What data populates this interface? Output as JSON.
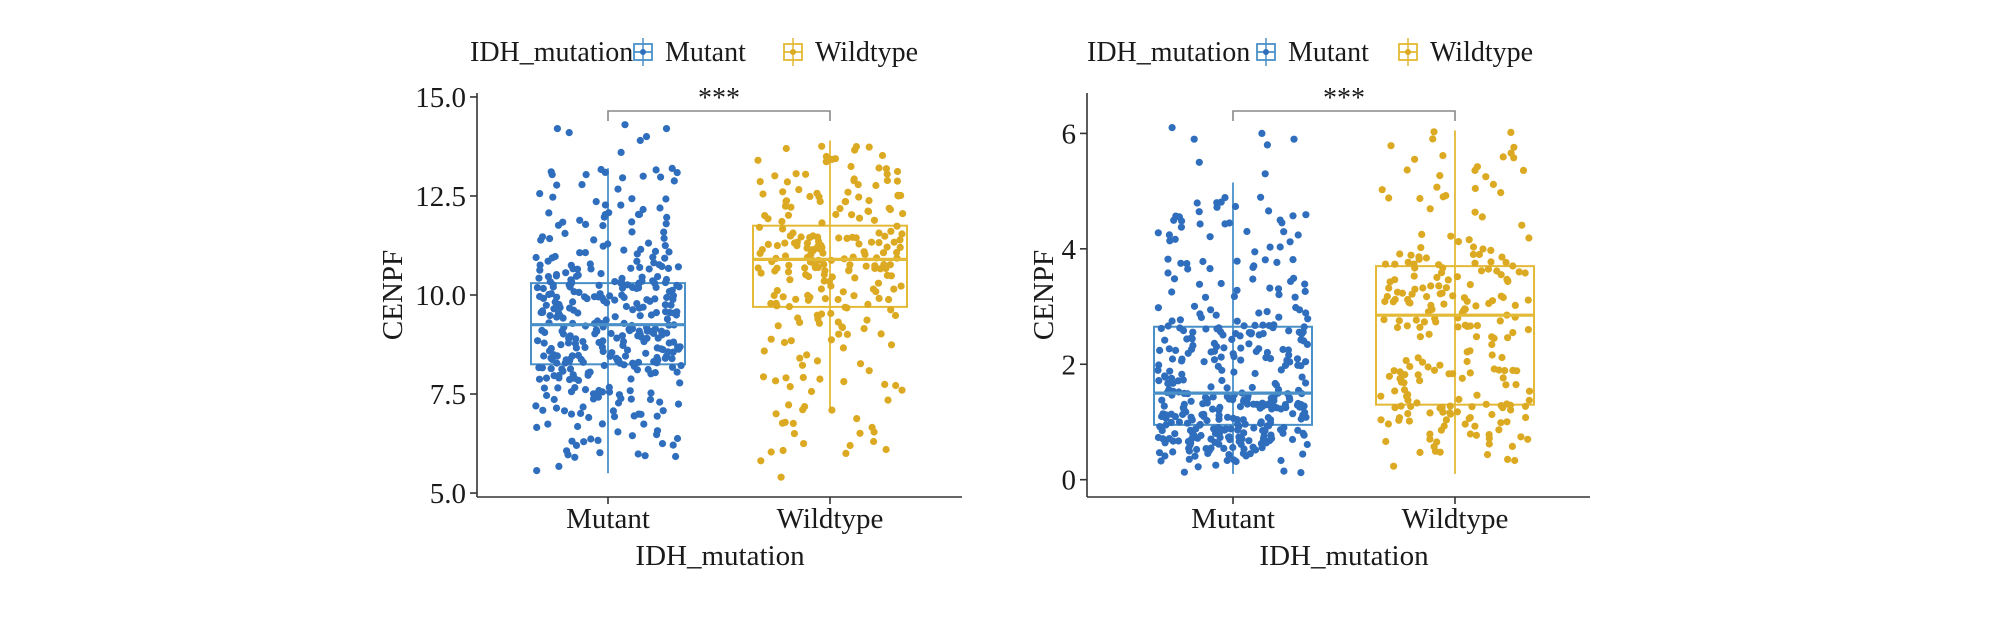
{
  "chart_data": [
    {
      "type": "box",
      "title": "",
      "xlabel": "IDH_mutation",
      "ylabel": "CENPF",
      "legend": {
        "title": "IDH_mutation",
        "position": "top",
        "entries": [
          "Mutant",
          "Wildtype"
        ]
      },
      "categories": [
        "Mutant",
        "Wildtype"
      ],
      "ylim": [
        4.9,
        15.1
      ],
      "yticks": [
        5.0,
        7.5,
        10.0,
        12.5,
        15.0
      ],
      "ytick_labels": [
        "5.0",
        "7.5",
        "10.0",
        "12.5",
        "15.0"
      ],
      "grid": false,
      "significance": "***",
      "series": [
        {
          "name": "Mutant",
          "color": "#2f6ebd",
          "box_color": "#4a90c8",
          "whisker_low": 5.5,
          "q1": 8.25,
          "median": 9.25,
          "q3": 10.3,
          "whisker_high": 13.2,
          "n_points": 380,
          "point_min": 5.4,
          "point_max": 14.3,
          "outliers": [
            13.6,
            13.9,
            14.0,
            14.2,
            14.3,
            14.1,
            14.2
          ]
        },
        {
          "name": "Wildtype",
          "color": "#dcaa22",
          "box_color": "#e3b935",
          "whisker_low": 7.1,
          "q1": 9.7,
          "median": 10.9,
          "q3": 11.75,
          "whisker_high": 13.9,
          "n_points": 240,
          "point_min": 5.4,
          "point_max": 13.9,
          "outliers": [
            6.0,
            6.1,
            6.2,
            6.3,
            6.5,
            5.4
          ]
        }
      ]
    },
    {
      "type": "box",
      "title": "",
      "xlabel": "IDH_mutation",
      "ylabel": "CENPF",
      "legend": {
        "title": "IDH_mutation",
        "position": "top",
        "entries": [
          "Mutant",
          "Wildtype"
        ]
      },
      "categories": [
        "Mutant",
        "Wildtype"
      ],
      "ylim": [
        -0.3,
        6.7
      ],
      "yticks": [
        0,
        2,
        4,
        6
      ],
      "ytick_labels": [
        "0",
        "2",
        "4",
        "6"
      ],
      "grid": false,
      "significance": "***",
      "series": [
        {
          "name": "Mutant",
          "color": "#2f6ebd",
          "box_color": "#4a90c8",
          "whisker_low": 0.1,
          "q1": 0.95,
          "median": 1.5,
          "q3": 2.65,
          "whisker_high": 5.15,
          "n_points": 380,
          "point_min": 0.1,
          "point_max": 6.1,
          "outliers": [
            5.3,
            5.5,
            5.8,
            5.9,
            6.0,
            6.1,
            5.9
          ]
        },
        {
          "name": "Wildtype",
          "color": "#dcaa22",
          "box_color": "#e3b935",
          "whisker_low": 0.1,
          "q1": 1.3,
          "median": 2.85,
          "q3": 3.7,
          "whisker_high": 6.05,
          "n_points": 240,
          "point_min": 0.1,
          "point_max": 6.05,
          "outliers": []
        }
      ]
    }
  ]
}
